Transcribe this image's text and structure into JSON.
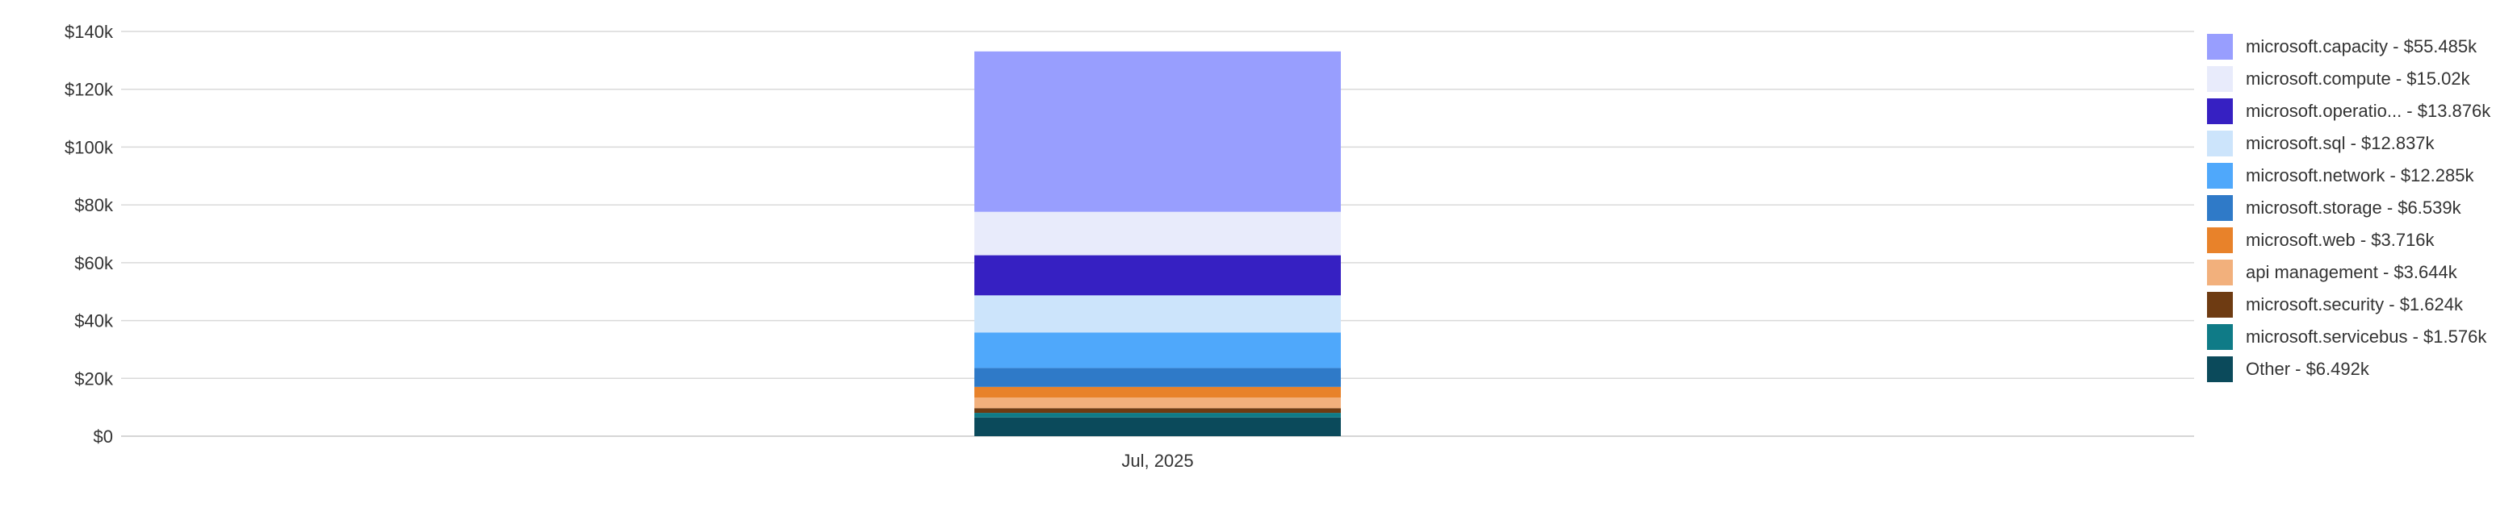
{
  "chart_data": {
    "type": "bar",
    "stacked": true,
    "categories": [
      "Jul, 2025"
    ],
    "ylim": [
      0,
      140000
    ],
    "yticks": [
      0,
      20000,
      40000,
      60000,
      80000,
      100000,
      120000,
      140000
    ],
    "ytick_labels": [
      "$0",
      "$20k",
      "$40k",
      "$60k",
      "$80k",
      "$100k",
      "$120k",
      "$140k"
    ],
    "grid": true,
    "legend_position": "right",
    "series": [
      {
        "name": "Other",
        "label": "Other - $6.492k",
        "values": [
          6492
        ],
        "color": "#0b4a5b"
      },
      {
        "name": "microsoft.servicebus",
        "label": "microsoft.servicebus - $1.576k",
        "values": [
          1576
        ],
        "color": "#0f7b87"
      },
      {
        "name": "microsoft.security",
        "label": "microsoft.security - $1.624k",
        "values": [
          1624
        ],
        "color": "#6e3b12"
      },
      {
        "name": "api management",
        "label": "api management - $3.644k",
        "values": [
          3644
        ],
        "color": "#f2b07c"
      },
      {
        "name": "microsoft.web",
        "label": "microsoft.web - $3.716k",
        "values": [
          3716
        ],
        "color": "#e8822a"
      },
      {
        "name": "microsoft.storage",
        "label": "microsoft.storage - $6.539k",
        "values": [
          6539
        ],
        "color": "#2f7ac8"
      },
      {
        "name": "microsoft.network",
        "label": "microsoft.network - $12.285k",
        "values": [
          12285
        ],
        "color": "#4fa8fb"
      },
      {
        "name": "microsoft.sql",
        "label": "microsoft.sql - $12.837k",
        "values": [
          12837
        ],
        "color": "#cce4fb"
      },
      {
        "name": "microsoft.operatio...",
        "label": "microsoft.operatio... - $13.876k",
        "values": [
          13876
        ],
        "color": "#3620c2"
      },
      {
        "name": "microsoft.compute",
        "label": "microsoft.compute - $15.02k",
        "values": [
          15020
        ],
        "color": "#e8ebfb"
      },
      {
        "name": "microsoft.capacity",
        "label": "microsoft.capacity - $55.485k",
        "values": [
          55485
        ],
        "color": "#989efe"
      }
    ]
  }
}
